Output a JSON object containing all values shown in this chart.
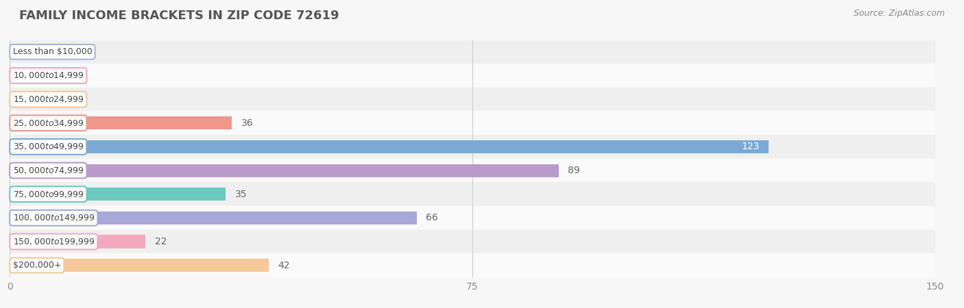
{
  "title": "FAMILY INCOME BRACKETS IN ZIP CODE 72619",
  "source": "Source: ZipAtlas.com",
  "categories": [
    "Less than $10,000",
    "$10,000 to $14,999",
    "$15,000 to $24,999",
    "$25,000 to $34,999",
    "$35,000 to $49,999",
    "$50,000 to $74,999",
    "$75,000 to $99,999",
    "$100,000 to $149,999",
    "$150,000 to $199,999",
    "$200,000+"
  ],
  "values": [
    0,
    6,
    6,
    36,
    123,
    89,
    35,
    66,
    22,
    42
  ],
  "bar_colors": [
    "#aab4e0",
    "#f4a8b8",
    "#f5c897",
    "#f0978a",
    "#7aaad4",
    "#b89bcc",
    "#6bc9be",
    "#a8a8d8",
    "#f4a8c0",
    "#f5c897"
  ],
  "xlim": [
    0,
    150
  ],
  "xticks": [
    0,
    75,
    150
  ],
  "bg_color": "#f7f7f7",
  "row_bg_even": "#efefef",
  "row_bg_odd": "#fafafa",
  "title_fontsize": 13,
  "source_fontsize": 9,
  "bar_height": 0.55,
  "label_fontsize": 9,
  "value_fontsize": 10
}
